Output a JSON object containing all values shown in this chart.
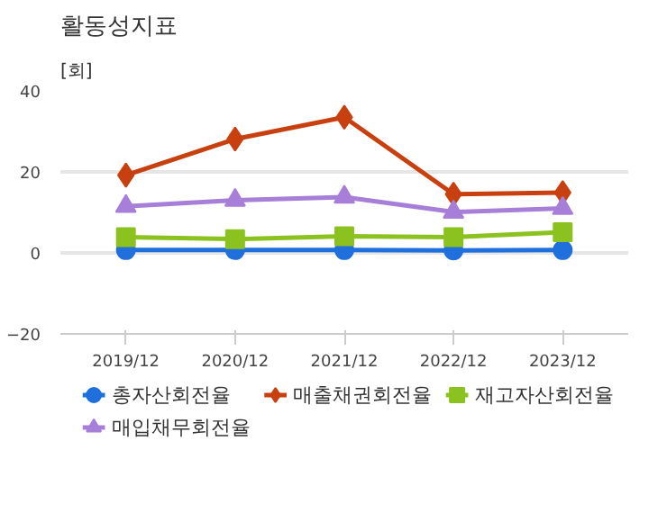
{
  "chart_data": {
    "type": "line",
    "title": "활동성지표",
    "ylabel": "[회]",
    "categories": [
      "2019/12",
      "2020/12",
      "2021/12",
      "2022/12",
      "2023/12"
    ],
    "series": [
      {
        "name": "총자산회전율",
        "color": "#1f6fdc",
        "marker": "circle",
        "values": [
          0.7,
          0.7,
          0.7,
          0.6,
          0.7
        ]
      },
      {
        "name": "매출채권회전율",
        "color": "#c8400f",
        "marker": "diamond",
        "values": [
          19.2,
          28.1,
          33.5,
          14.5,
          14.9
        ]
      },
      {
        "name": "재고자산회전율",
        "color": "#8cc21f",
        "marker": "square",
        "values": [
          3.9,
          3.4,
          4.1,
          3.9,
          5.1
        ]
      },
      {
        "name": "매입채무회전율",
        "color": "#a77fd8",
        "marker": "triangle",
        "values": [
          11.5,
          13.0,
          13.8,
          10.1,
          11.0
        ]
      }
    ],
    "ylim": [
      -20,
      40
    ],
    "yticks": [
      -20,
      0,
      20,
      40
    ],
    "grid": "y",
    "legend": "bottom",
    "line_style": "solid"
  }
}
